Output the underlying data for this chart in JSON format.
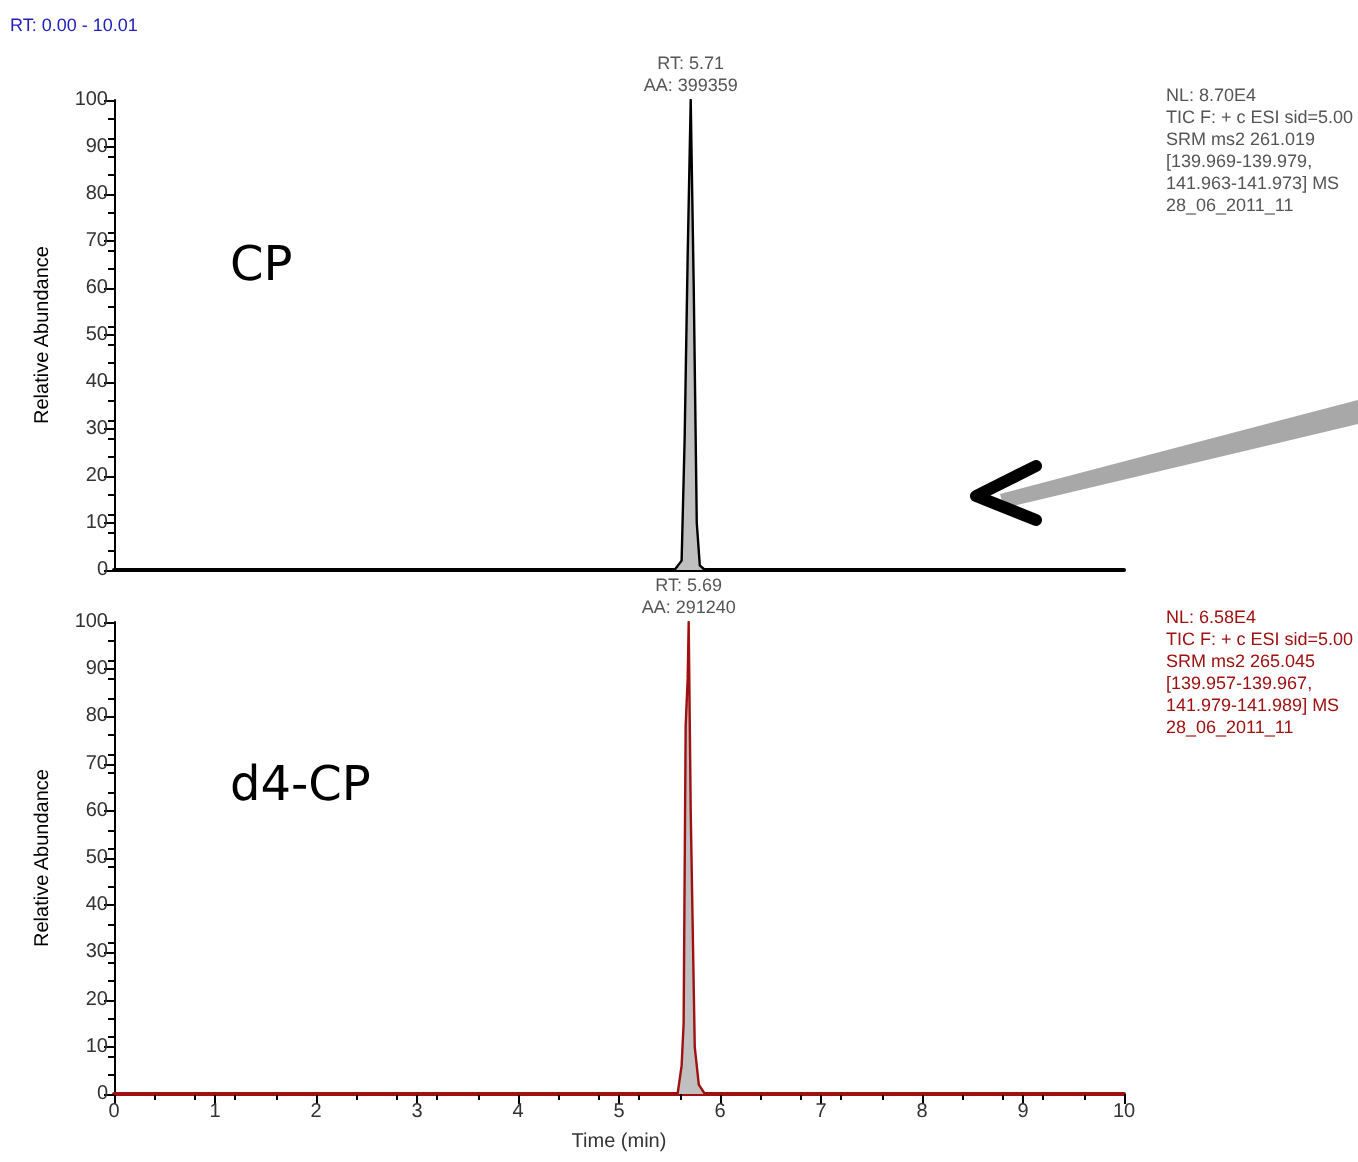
{
  "chart_data": [
    {
      "type": "area",
      "title": "CP",
      "xlim": [
        0,
        10
      ],
      "xticks": [
        0,
        1,
        2,
        3,
        4,
        5,
        6,
        7,
        8,
        9,
        10
      ],
      "ylim": [
        0,
        100
      ],
      "yticks": [
        0,
        10,
        20,
        30,
        40,
        50,
        60,
        70,
        80,
        90,
        100
      ],
      "ylabel": "Relative Abundance",
      "tick_labels": "y",
      "grid": false,
      "marker": "none",
      "series": [
        {
          "color": "#000000",
          "x": [
            0,
            5.55,
            5.62,
            5.65,
            5.68,
            5.71,
            5.74,
            5.77,
            5.8,
            5.85,
            10
          ],
          "values": [
            0,
            0,
            2,
            28,
            67,
            100,
            60,
            10,
            1,
            0,
            0
          ]
        }
      ],
      "annotations": [
        "RT: 0.00 - 10.01",
        {
          "text": "RT: 5.71\nAA: 399359",
          "x": 5.71,
          "y": 100
        },
        "NL: 8.70E4\nTIC F: + c ESI sid=5.00\nSRM ms2 261.019\n[139.969-139.979,\n141.963-141.973] MS\n28_06_2011_11"
      ]
    },
    {
      "type": "area",
      "title": "d4-CP",
      "xlim": [
        0,
        10
      ],
      "xticks": [
        0,
        1,
        2,
        3,
        4,
        5,
        6,
        7,
        8,
        9,
        10
      ],
      "ylim": [
        0,
        100
      ],
      "yticks": [
        0,
        10,
        20,
        30,
        40,
        50,
        60,
        70,
        80,
        90,
        100
      ],
      "xlabel": "Time (min)",
      "ylabel": "Relative Abundance",
      "grid": false,
      "marker": "none",
      "series": [
        {
          "color": "#a01010",
          "x": [
            0,
            5.58,
            5.62,
            5.64,
            5.66,
            5.68,
            5.69,
            5.71,
            5.75,
            5.79,
            5.85,
            10
          ],
          "values": [
            0,
            0,
            6,
            15,
            78,
            88,
            100,
            60,
            10,
            2,
            0,
            0
          ]
        }
      ],
      "annotations": [
        {
          "text": "RT: 5.69\nAA: 291240",
          "x": 5.69,
          "y": 100
        },
        "NL: 6.58E4\nTIC F: + c ESI sid=5.00\nSRM ms2 265.045\n[139.957-139.967,\n141.979-141.989] MS\n28_06_2011_11"
      ]
    }
  ]
}
